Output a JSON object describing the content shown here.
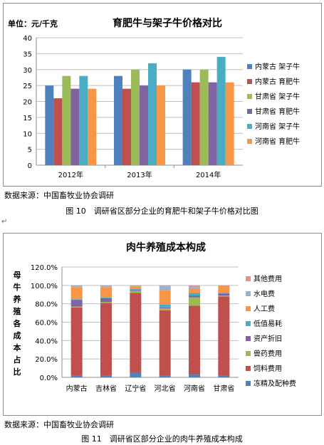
{
  "charts": [
    {
      "chart_data": {
        "type": "bar",
        "title": "育肥牛与架子牛价格对比",
        "ylabel": "单位：元/千克",
        "categories": [
          "2012年",
          "2013年",
          "2014年"
        ],
        "ylim": [
          0,
          40
        ],
        "yticks": [
          0,
          5,
          10,
          15,
          20,
          25,
          30,
          35,
          40
        ],
        "grid": true,
        "legend_position": "right",
        "series": [
          {
            "name": "内蒙古 架子牛",
            "color": "#4F81BD",
            "values": [
              25,
              28,
              30
            ]
          },
          {
            "name": "内蒙古 育肥牛",
            "color": "#C0504D",
            "values": [
              21,
              24,
              26
            ]
          },
          {
            "name": "甘肃省 架子牛",
            "color": "#9BBB59",
            "values": [
              28,
              30,
              30
            ]
          },
          {
            "name": "甘肃省 育肥牛",
            "color": "#8064A2",
            "values": [
              24,
              25,
              26
            ]
          },
          {
            "name": "河南省 架子牛",
            "color": "#4BACC6",
            "values": [
              28,
              32,
              34
            ]
          },
          {
            "name": "河南省 育肥牛",
            "color": "#F79646",
            "values": [
              24,
              25,
              26
            ]
          }
        ]
      }
    },
    {
      "chart_data": {
        "type": "bar",
        "stacked": true,
        "title": "肉牛养殖成本构成",
        "ylabel": "母牛养殖各成本占比",
        "categories": [
          "内蒙古",
          "吉林省",
          "辽宁省",
          "河北省",
          "河南省",
          "甘肃省"
        ],
        "ylim": [
          0,
          120
        ],
        "yticks": [
          "0.0%",
          "20.0%",
          "40.0%",
          "60.0%",
          "80.0%",
          "100.0%",
          "120.0%"
        ],
        "grid": true,
        "legend_position": "right",
        "series": [
          {
            "name": "冻精及配种费",
            "color": "#4F81BD",
            "values": [
              2,
              2,
              5,
              2,
              3,
              2
            ]
          },
          {
            "name": "饲料费用",
            "color": "#C0504D",
            "values": [
              74,
              79,
              87,
              71,
              75,
              86
            ]
          },
          {
            "name": "兽药费用",
            "color": "#9BBB59",
            "values": [
              1,
              1,
              2,
              2,
              9,
              1
            ]
          },
          {
            "name": "资产折旧",
            "color": "#8064A2",
            "values": [
              7,
              4,
              1,
              1,
              2,
              2
            ]
          },
          {
            "name": "低值易耗",
            "color": "#4BACC6",
            "values": [
              1,
              1,
              1,
              3,
              3,
              1
            ]
          },
          {
            "name": "人工费",
            "color": "#F79646",
            "values": [
              13,
              11,
              3,
              16,
              4,
              8
            ]
          },
          {
            "name": "水电费",
            "color": "#95B3D7",
            "values": [
              1,
              1,
              1,
              4,
              2,
              0
            ]
          },
          {
            "name": "其他费用",
            "color": "#DA9694",
            "values": [
              1,
              1,
              0,
              1,
              2,
              0
            ]
          }
        ]
      }
    }
  ],
  "source1": "数据来源：中国畜牧业协会调研",
  "caption1": "图 10　调研省区部分企业的育肥牛和架子牛价格对比图",
  "source2": "数据来源：中国畜牧业协会调研",
  "caption2": "图 11　调研省区部分企业的肉牛养殖成本构成"
}
